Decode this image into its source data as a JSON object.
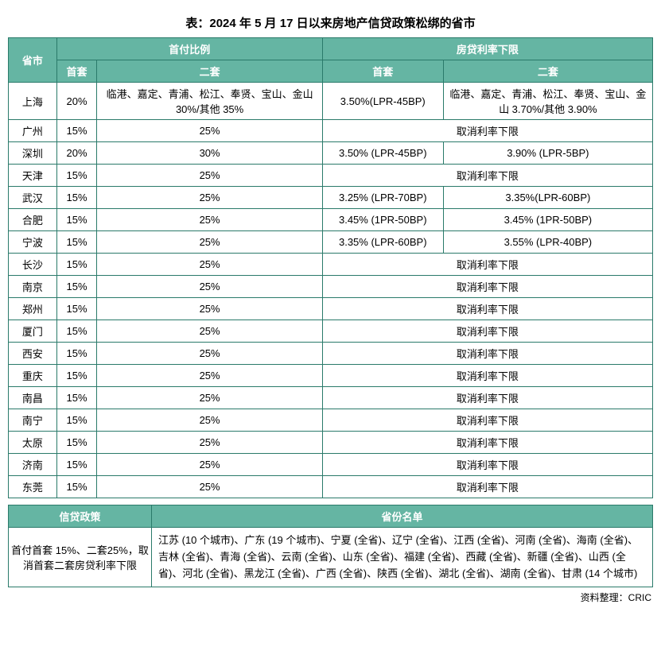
{
  "title": "表：2024 年 5 月 17 日以来房地产信贷政策松绑的省市",
  "headers": {
    "city": "省市",
    "downpayment": "首付比例",
    "rate": "房贷利率下限",
    "first": "首套",
    "second": "二套"
  },
  "rows": [
    {
      "city": "上海",
      "dp_first": "20%",
      "dp_second": "临港、嘉定、青浦、松江、奉贤、宝山、金山 30%/其他 35%",
      "rate_first": "3.50%(LPR-45BP)",
      "rate_second": "临港、嘉定、青浦、松江、奉贤、宝山、金山 3.70%/其他 3.90%",
      "merged": false
    },
    {
      "city": "广州",
      "dp_first": "15%",
      "dp_second": "25%",
      "rate_merged": "取消利率下限",
      "merged": true
    },
    {
      "city": "深圳",
      "dp_first": "20%",
      "dp_second": "30%",
      "rate_first": "3.50% (LPR-45BP)",
      "rate_second": "3.90% (LPR-5BP)",
      "merged": false
    },
    {
      "city": "天津",
      "dp_first": "15%",
      "dp_second": "25%",
      "rate_merged": "取消利率下限",
      "merged": true
    },
    {
      "city": "武汉",
      "dp_first": "15%",
      "dp_second": "25%",
      "rate_first": "3.25% (LPR-70BP)",
      "rate_second": "3.35%(LPR-60BP)",
      "merged": false
    },
    {
      "city": "合肥",
      "dp_first": "15%",
      "dp_second": "25%",
      "rate_first": "3.45% (1PR-50BP)",
      "rate_second": "3.45% (1PR-50BP)",
      "merged": false
    },
    {
      "city": "宁波",
      "dp_first": "15%",
      "dp_second": "25%",
      "rate_first": "3.35% (LPR-60BP)",
      "rate_second": "3.55% (LPR-40BP)",
      "merged": false
    },
    {
      "city": "长沙",
      "dp_first": "15%",
      "dp_second": "25%",
      "rate_merged": "取消利率下限",
      "merged": true
    },
    {
      "city": "南京",
      "dp_first": "15%",
      "dp_second": "25%",
      "rate_merged": "取消利率下限",
      "merged": true
    },
    {
      "city": "郑州",
      "dp_first": "15%",
      "dp_second": "25%",
      "rate_merged": "取消利率下限",
      "merged": true
    },
    {
      "city": "厦门",
      "dp_first": "15%",
      "dp_second": "25%",
      "rate_merged": "取消利率下限",
      "merged": true
    },
    {
      "city": "西安",
      "dp_first": "15%",
      "dp_second": "25%",
      "rate_merged": "取消利率下限",
      "merged": true
    },
    {
      "city": "重庆",
      "dp_first": "15%",
      "dp_second": "25%",
      "rate_merged": "取消利率下限",
      "merged": true
    },
    {
      "city": "南昌",
      "dp_first": "15%",
      "dp_second": "25%",
      "rate_merged": "取消利率下限",
      "merged": true
    },
    {
      "city": "南宁",
      "dp_first": "15%",
      "dp_second": "25%",
      "rate_merged": "取消利率下限",
      "merged": true
    },
    {
      "city": "太原",
      "dp_first": "15%",
      "dp_second": "25%",
      "rate_merged": "取消利率下限",
      "merged": true
    },
    {
      "city": "济南",
      "dp_first": "15%",
      "dp_second": "25%",
      "rate_merged": "取消利率下限",
      "merged": true
    },
    {
      "city": "东莞",
      "dp_first": "15%",
      "dp_second": "25%",
      "rate_merged": "取消利率下限",
      "merged": true
    }
  ],
  "bottom": {
    "policy_header": "信贷政策",
    "province_header": "省份名单",
    "policy_text": "首付首套 15%、二套25%，取消首套二套房贷利率下限",
    "province_text": "江苏 (10 个城市)、广东 (19 个城市)、宁夏 (全省)、辽宁 (全省)、江西 (全省)、河南 (全省)、海南 (全省)、吉林 (全省)、青海 (全省)、云南 (全省)、山东 (全省)、福建 (全省)、西藏 (全省)、新疆 (全省)、山西 (全省)、河北 (全省)、黑龙江 (全省)、广西 (全省)、陕西 (全省)、湖北 (全省)、湖南 (全省)、甘肃 (14 个城市)"
  },
  "footer": "资料整理：CRIC"
}
